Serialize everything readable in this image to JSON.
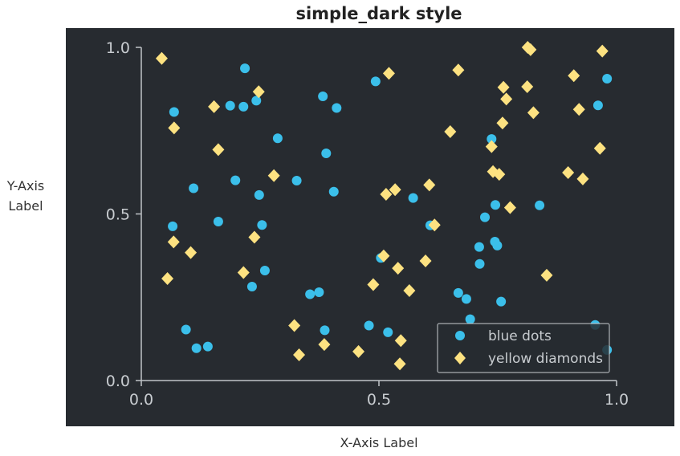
{
  "colors": {
    "figure_background": "#ffffff",
    "axes_background": "#272b30",
    "axis_line": "#c0c4c8",
    "tick_text": "#c8ccd0",
    "blue_dots": "#3bbfea",
    "yellow_diamonds": "#fde281",
    "legend_border": "#c8ccd0"
  },
  "chart_data": {
    "type": "scatter",
    "title": "simple_dark style",
    "xlabel": "X-Axis Label",
    "ylabel": "Y-Axis Label",
    "xlim": [
      0,
      1
    ],
    "ylim": [
      0,
      1
    ],
    "xticks": [
      0.0,
      0.5,
      1.0
    ],
    "yticks": [
      0.0,
      0.5,
      1.0
    ],
    "xtick_labels": [
      "0.0",
      "0.5",
      "1.0"
    ],
    "ytick_labels": [
      "0.0",
      "0.5",
      "1.0"
    ],
    "grid": false,
    "legend_position": "lower-right",
    "series": [
      {
        "name": "blue dots",
        "marker": "circle",
        "color": "#3bbfea",
        "points": [
          [
            0.218,
            0.937
          ],
          [
            0.069,
            0.806
          ],
          [
            0.187,
            0.825
          ],
          [
            0.215,
            0.822
          ],
          [
            0.242,
            0.84
          ],
          [
            0.382,
            0.853
          ],
          [
            0.411,
            0.818
          ],
          [
            0.493,
            0.898
          ],
          [
            0.98,
            0.906
          ],
          [
            0.961,
            0.826
          ],
          [
            0.287,
            0.727
          ],
          [
            0.389,
            0.682
          ],
          [
            0.198,
            0.601
          ],
          [
            0.327,
            0.6
          ],
          [
            0.11,
            0.577
          ],
          [
            0.248,
            0.557
          ],
          [
            0.405,
            0.567
          ],
          [
            0.572,
            0.548
          ],
          [
            0.066,
            0.463
          ],
          [
            0.162,
            0.477
          ],
          [
            0.254,
            0.467
          ],
          [
            0.608,
            0.466
          ],
          [
            0.737,
            0.725
          ],
          [
            0.745,
            0.527
          ],
          [
            0.723,
            0.49
          ],
          [
            0.838,
            0.526
          ],
          [
            0.504,
            0.368
          ],
          [
            0.26,
            0.33
          ],
          [
            0.233,
            0.282
          ],
          [
            0.711,
            0.401
          ],
          [
            0.744,
            0.417
          ],
          [
            0.749,
            0.405
          ],
          [
            0.712,
            0.35
          ],
          [
            0.355,
            0.259
          ],
          [
            0.374,
            0.265
          ],
          [
            0.667,
            0.263
          ],
          [
            0.684,
            0.245
          ],
          [
            0.757,
            0.237
          ],
          [
            0.094,
            0.153
          ],
          [
            0.386,
            0.151
          ],
          [
            0.479,
            0.165
          ],
          [
            0.519,
            0.145
          ],
          [
            0.116,
            0.097
          ],
          [
            0.14,
            0.102
          ],
          [
            0.692,
            0.184
          ],
          [
            0.955,
            0.167
          ],
          [
            0.98,
            0.092
          ]
        ]
      },
      {
        "name": "yellow diamonds",
        "marker": "diamond",
        "color": "#fde281",
        "points": [
          [
            0.043,
            0.967
          ],
          [
            0.247,
            0.867
          ],
          [
            0.521,
            0.922
          ],
          [
            0.667,
            0.932
          ],
          [
            0.813,
            1.0
          ],
          [
            0.819,
            0.993
          ],
          [
            0.97,
            0.989
          ],
          [
            0.153,
            0.822
          ],
          [
            0.069,
            0.758
          ],
          [
            0.762,
            0.88
          ],
          [
            0.812,
            0.882
          ],
          [
            0.768,
            0.845
          ],
          [
            0.76,
            0.773
          ],
          [
            0.825,
            0.804
          ],
          [
            0.91,
            0.915
          ],
          [
            0.921,
            0.814
          ],
          [
            0.65,
            0.747
          ],
          [
            0.162,
            0.693
          ],
          [
            0.737,
            0.702
          ],
          [
            0.965,
            0.697
          ],
          [
            0.279,
            0.615
          ],
          [
            0.515,
            0.559
          ],
          [
            0.534,
            0.573
          ],
          [
            0.606,
            0.587
          ],
          [
            0.74,
            0.627
          ],
          [
            0.753,
            0.619
          ],
          [
            0.776,
            0.519
          ],
          [
            0.898,
            0.624
          ],
          [
            0.929,
            0.605
          ],
          [
            0.068,
            0.416
          ],
          [
            0.104,
            0.384
          ],
          [
            0.238,
            0.43
          ],
          [
            0.055,
            0.306
          ],
          [
            0.215,
            0.324
          ],
          [
            0.51,
            0.374
          ],
          [
            0.54,
            0.337
          ],
          [
            0.598,
            0.359
          ],
          [
            0.617,
            0.467
          ],
          [
            0.853,
            0.316
          ],
          [
            0.488,
            0.288
          ],
          [
            0.564,
            0.27
          ],
          [
            0.322,
            0.165
          ],
          [
            0.332,
            0.077
          ],
          [
            0.385,
            0.108
          ],
          [
            0.457,
            0.087
          ],
          [
            0.546,
            0.12
          ],
          [
            0.544,
            0.05
          ]
        ]
      }
    ]
  }
}
